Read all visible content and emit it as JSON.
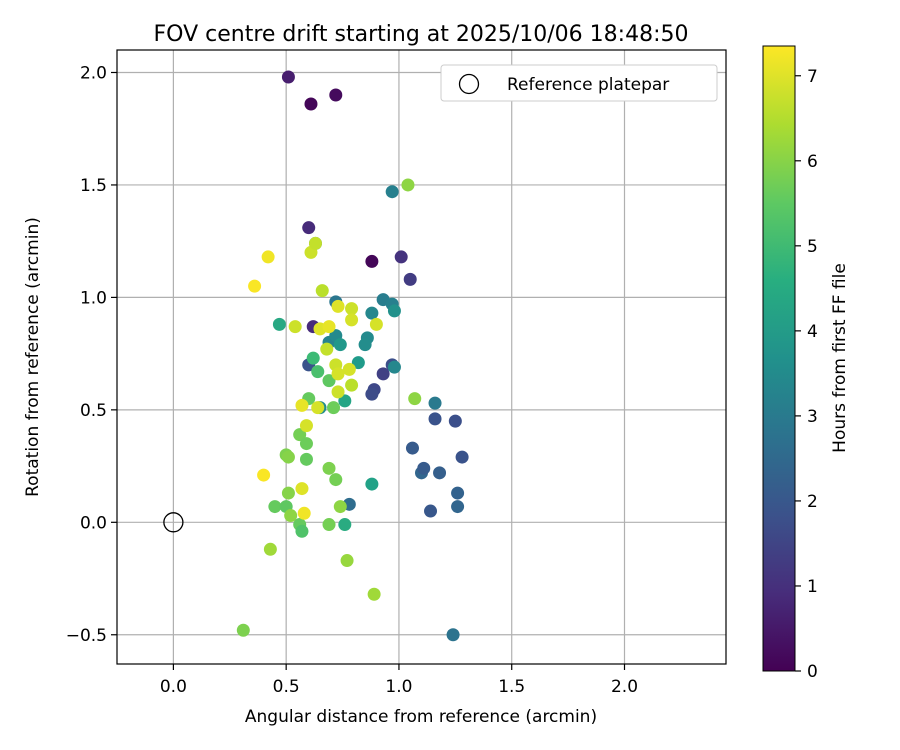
{
  "chart_data": {
    "type": "scatter",
    "title": "FOV centre drift starting at 2025/10/06 18:48:50",
    "xlabel": "Angular distance from reference (arcmin)",
    "ylabel": "Rotation from reference (arcmin)",
    "xlim": [
      -0.25,
      2.45
    ],
    "ylim": [
      -0.63,
      2.1
    ],
    "xticks": [
      0.0,
      0.5,
      1.0,
      1.5,
      2.0
    ],
    "xtick_labels": [
      "0.0",
      "0.5",
      "1.0",
      "1.5",
      "2.0"
    ],
    "yticks": [
      -0.5,
      0.0,
      0.5,
      1.0,
      1.5,
      2.0
    ],
    "ytick_labels": [
      "−0.5",
      "0.0",
      "0.5",
      "1.0",
      "1.5",
      "2.0"
    ],
    "grid": true,
    "legend": {
      "position": "top-right",
      "entries": [
        "Reference platepar"
      ]
    },
    "reference_point": {
      "x": 0.0,
      "y": 0.0,
      "label": "Reference platepar"
    },
    "colorbar": {
      "label": "Hours from first FF file",
      "colormap": "viridis",
      "range": [
        0,
        7.35
      ],
      "ticks": [
        0,
        1,
        2,
        3,
        4,
        5,
        6,
        7
      ],
      "tick_labels": [
        "0",
        "1",
        "2",
        "3",
        "4",
        "5",
        "6",
        "7"
      ]
    },
    "points": [
      {
        "x": 0.51,
        "y": 1.98,
        "t": 0.6
      },
      {
        "x": 0.61,
        "y": 1.86,
        "t": 0.1
      },
      {
        "x": 0.72,
        "y": 1.9,
        "t": 0.2
      },
      {
        "x": 0.88,
        "y": 1.16,
        "t": 0.1
      },
      {
        "x": 0.6,
        "y": 1.31,
        "t": 0.9
      },
      {
        "x": 0.62,
        "y": 0.87,
        "t": 0.9
      },
      {
        "x": 1.01,
        "y": 1.18,
        "t": 1.1
      },
      {
        "x": 1.05,
        "y": 1.08,
        "t": 1.3
      },
      {
        "x": 0.6,
        "y": 0.7,
        "t": 1.9
      },
      {
        "x": 0.93,
        "y": 0.66,
        "t": 1.4
      },
      {
        "x": 0.89,
        "y": 0.59,
        "t": 1.6
      },
      {
        "x": 0.88,
        "y": 0.57,
        "t": 1.7
      },
      {
        "x": 0.97,
        "y": 0.7,
        "t": 1.8
      },
      {
        "x": 1.06,
        "y": 0.33,
        "t": 2.1
      },
      {
        "x": 1.16,
        "y": 0.46,
        "t": 1.9
      },
      {
        "x": 1.25,
        "y": 0.45,
        "t": 1.8
      },
      {
        "x": 1.28,
        "y": 0.29,
        "t": 1.9
      },
      {
        "x": 1.18,
        "y": 0.22,
        "t": 2.2
      },
      {
        "x": 1.1,
        "y": 0.22,
        "t": 2.4
      },
      {
        "x": 1.11,
        "y": 0.24,
        "t": 2.1
      },
      {
        "x": 1.26,
        "y": 0.13,
        "t": 2.3
      },
      {
        "x": 1.26,
        "y": 0.07,
        "t": 2.4
      },
      {
        "x": 1.14,
        "y": 0.05,
        "t": 2.0
      },
      {
        "x": 1.16,
        "y": 0.53,
        "t": 3.0
      },
      {
        "x": 1.24,
        "y": -0.5,
        "t": 2.8
      },
      {
        "x": 0.78,
        "y": 0.08,
        "t": 2.6
      },
      {
        "x": 0.97,
        "y": 1.47,
        "t": 3.2
      },
      {
        "x": 0.63,
        "y": 1.24,
        "t": 2.8
      },
      {
        "x": 0.72,
        "y": 0.98,
        "t": 2.9
      },
      {
        "x": 0.93,
        "y": 0.99,
        "t": 3.1
      },
      {
        "x": 0.97,
        "y": 0.97,
        "t": 3.2
      },
      {
        "x": 0.98,
        "y": 0.94,
        "t": 3.7
      },
      {
        "x": 0.88,
        "y": 0.93,
        "t": 3.4
      },
      {
        "x": 0.86,
        "y": 0.82,
        "t": 3.5
      },
      {
        "x": 0.85,
        "y": 0.79,
        "t": 3.6
      },
      {
        "x": 0.69,
        "y": 0.8,
        "t": 3.3
      },
      {
        "x": 0.72,
        "y": 0.83,
        "t": 3.5
      },
      {
        "x": 0.74,
        "y": 0.79,
        "t": 3.9
      },
      {
        "x": 0.98,
        "y": 0.69,
        "t": 3.4
      },
      {
        "x": 0.82,
        "y": 0.71,
        "t": 4.0
      },
      {
        "x": 0.65,
        "y": 0.51,
        "t": 3.6
      },
      {
        "x": 0.76,
        "y": 0.54,
        "t": 4.3
      },
      {
        "x": 0.88,
        "y": 0.17,
        "t": 4.2
      },
      {
        "x": 0.47,
        "y": 0.88,
        "t": 4.4
      },
      {
        "x": 0.76,
        "y": -0.01,
        "t": 4.5
      },
      {
        "x": 0.62,
        "y": 0.73,
        "t": 5.0
      },
      {
        "x": 0.64,
        "y": 0.67,
        "t": 5.2
      },
      {
        "x": 0.69,
        "y": 0.63,
        "t": 5.5
      },
      {
        "x": 0.6,
        "y": 0.55,
        "t": 5.6
      },
      {
        "x": 0.71,
        "y": 0.51,
        "t": 5.7
      },
      {
        "x": 0.56,
        "y": 0.39,
        "t": 5.8
      },
      {
        "x": 0.59,
        "y": 0.35,
        "t": 5.7
      },
      {
        "x": 0.59,
        "y": 0.28,
        "t": 5.6
      },
      {
        "x": 0.5,
        "y": 0.3,
        "t": 5.9
      },
      {
        "x": 0.51,
        "y": 0.29,
        "t": 6.0
      },
      {
        "x": 0.69,
        "y": 0.24,
        "t": 5.9
      },
      {
        "x": 0.72,
        "y": 0.19,
        "t": 5.8
      },
      {
        "x": 0.51,
        "y": 0.13,
        "t": 6.0
      },
      {
        "x": 0.45,
        "y": 0.07,
        "t": 5.6
      },
      {
        "x": 0.5,
        "y": 0.07,
        "t": 5.5
      },
      {
        "x": 0.52,
        "y": 0.03,
        "t": 6.1
      },
      {
        "x": 0.56,
        "y": -0.01,
        "t": 5.6
      },
      {
        "x": 0.57,
        "y": -0.04,
        "t": 5.3
      },
      {
        "x": 0.69,
        "y": -0.01,
        "t": 5.8
      },
      {
        "x": 0.74,
        "y": 0.07,
        "t": 6.1
      },
      {
        "x": 0.43,
        "y": -0.12,
        "t": 6.3
      },
      {
        "x": 0.77,
        "y": -0.17,
        "t": 6.2
      },
      {
        "x": 0.89,
        "y": -0.32,
        "t": 6.3
      },
      {
        "x": 0.31,
        "y": -0.48,
        "t": 5.9
      },
      {
        "x": 1.07,
        "y": 0.55,
        "t": 6.1
      },
      {
        "x": 1.04,
        "y": 1.5,
        "t": 6.1
      },
      {
        "x": 0.61,
        "y": 1.2,
        "t": 6.8
      },
      {
        "x": 0.63,
        "y": 1.24,
        "t": 6.7
      },
      {
        "x": 0.66,
        "y": 1.03,
        "t": 6.6
      },
      {
        "x": 0.73,
        "y": 0.96,
        "t": 7.0
      },
      {
        "x": 0.79,
        "y": 0.95,
        "t": 6.8
      },
      {
        "x": 0.79,
        "y": 0.9,
        "t": 6.9
      },
      {
        "x": 0.54,
        "y": 0.87,
        "t": 6.8
      },
      {
        "x": 0.65,
        "y": 0.86,
        "t": 7.0
      },
      {
        "x": 0.69,
        "y": 0.87,
        "t": 7.1
      },
      {
        "x": 0.68,
        "y": 0.77,
        "t": 6.7
      },
      {
        "x": 0.9,
        "y": 0.88,
        "t": 6.9
      },
      {
        "x": 0.72,
        "y": 0.7,
        "t": 6.8
      },
      {
        "x": 0.73,
        "y": 0.66,
        "t": 6.9
      },
      {
        "x": 0.78,
        "y": 0.68,
        "t": 6.9
      },
      {
        "x": 0.79,
        "y": 0.61,
        "t": 6.6
      },
      {
        "x": 0.73,
        "y": 0.58,
        "t": 6.8
      },
      {
        "x": 0.64,
        "y": 0.51,
        "t": 6.9
      },
      {
        "x": 0.57,
        "y": 0.52,
        "t": 7.1
      },
      {
        "x": 0.59,
        "y": 0.43,
        "t": 6.9
      },
      {
        "x": 0.42,
        "y": 1.18,
        "t": 7.2
      },
      {
        "x": 0.36,
        "y": 1.05,
        "t": 7.3
      },
      {
        "x": 0.4,
        "y": 0.21,
        "t": 7.3
      },
      {
        "x": 0.57,
        "y": 0.15,
        "t": 7.0
      },
      {
        "x": 0.58,
        "y": 0.04,
        "t": 7.2
      }
    ]
  }
}
